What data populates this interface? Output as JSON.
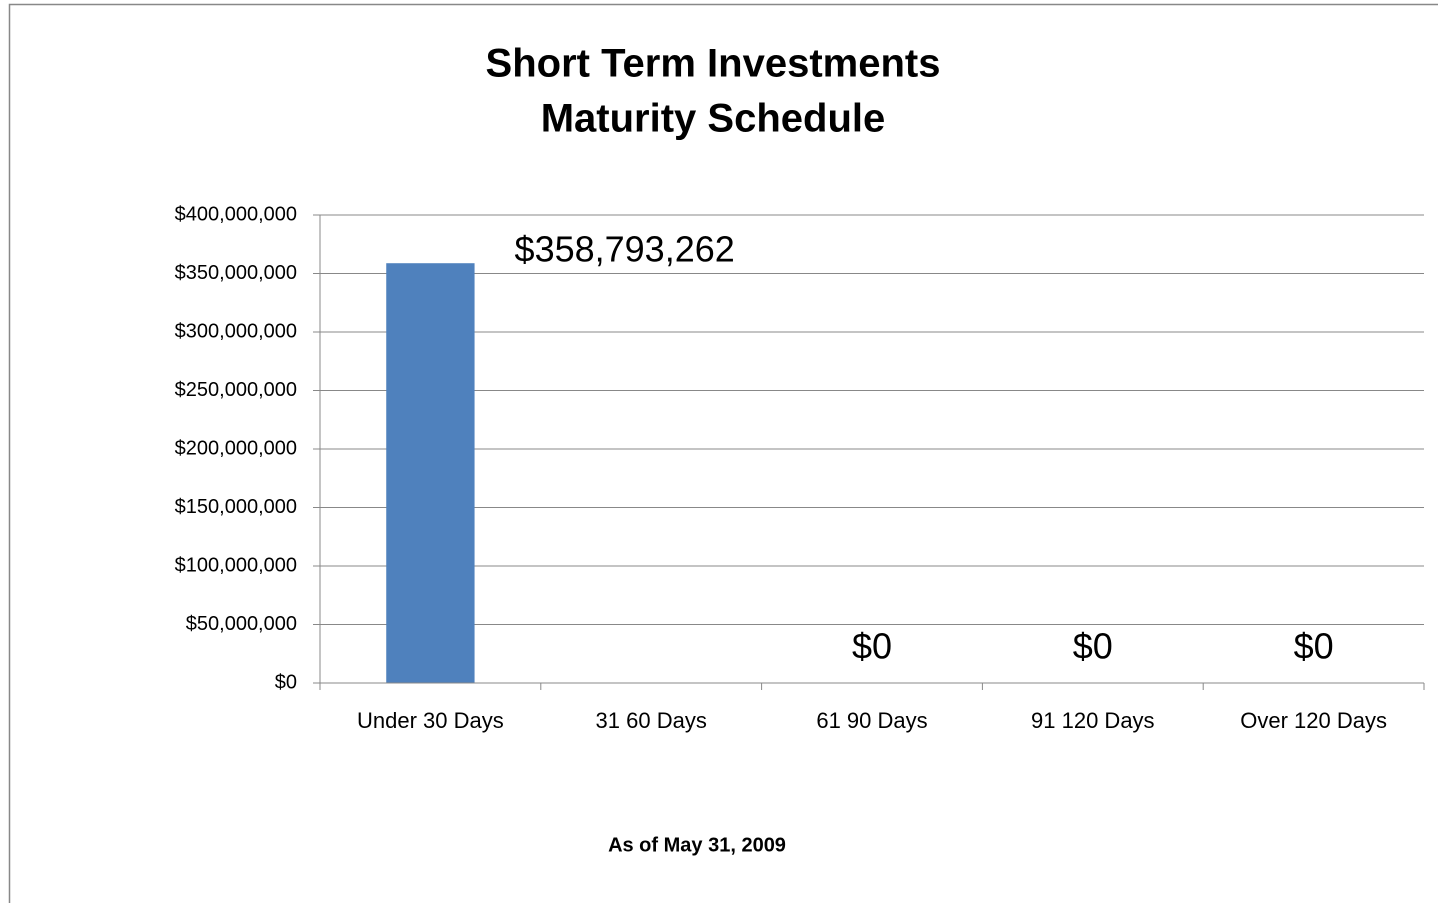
{
  "chart_data": {
    "type": "bar",
    "title": [
      "Short  Term Investments",
      "Maturity Schedule"
    ],
    "footnote": "As of May 31, 2009",
    "categories": [
      "Under 30 Days",
      "31 60 Days",
      "61 90 Days",
      "91 120 Days",
      "Over 120 Days"
    ],
    "values": [
      358793262,
      0,
      0,
      0,
      0
    ],
    "value_labels": [
      "$358,793,262",
      null,
      "$0",
      "$0",
      "$0"
    ],
    "color": "#4f81bd",
    "ylim": [
      0,
      400000000
    ],
    "yticks": [
      {
        "value": 0,
        "label": "$0"
      },
      {
        "value": 50000000,
        "label": "$50,000,000"
      },
      {
        "value": 100000000,
        "label": "$100,000,000"
      },
      {
        "value": 150000000,
        "label": "$150,000,000"
      },
      {
        "value": 200000000,
        "label": "$200,000,000"
      },
      {
        "value": 250000000,
        "label": "$250,000,000"
      },
      {
        "value": 300000000,
        "label": "$300,000,000"
      },
      {
        "value": 350000000,
        "label": "$350,000,000"
      },
      {
        "value": 400000000,
        "label": "$400,000,000"
      }
    ],
    "grid": true
  }
}
